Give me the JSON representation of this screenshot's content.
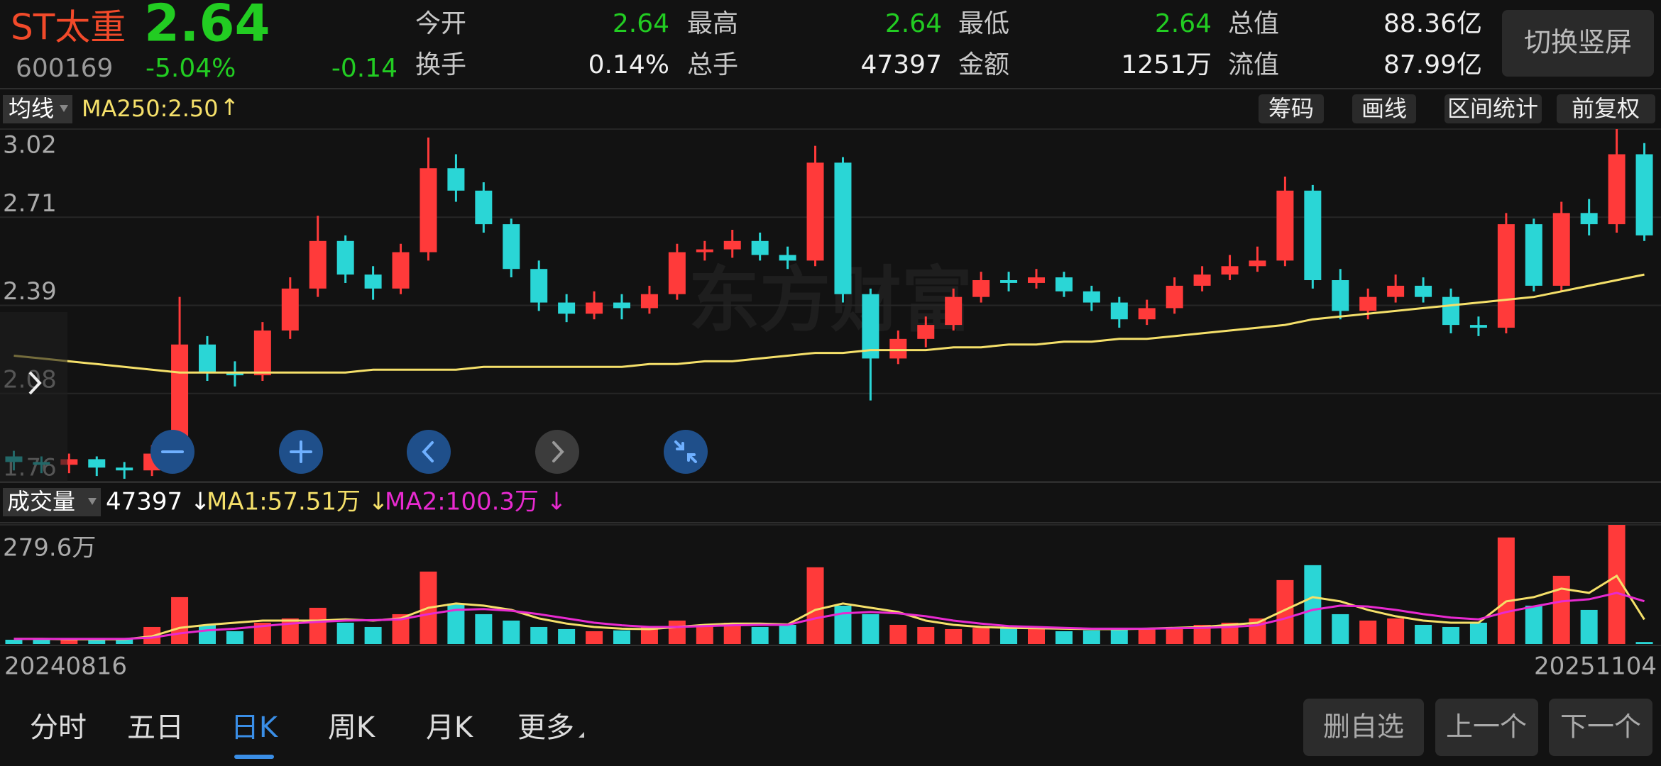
{
  "header": {
    "name": "ST太重",
    "price": "2.64",
    "code": "600169",
    "change_pct": "-5.04%",
    "change": "-0.14",
    "stats": [
      {
        "label": "今开",
        "value": "2.64"
      },
      {
        "label": "最高",
        "value": "2.64"
      },
      {
        "label": "最低",
        "value": "2.64"
      },
      {
        "label": "总值",
        "value": "88.36亿"
      },
      {
        "label": "换手",
        "value": "0.14%"
      },
      {
        "label": "总手",
        "value": "47397"
      },
      {
        "label": "金额",
        "value": "1251万"
      },
      {
        "label": "流值",
        "value": "87.99亿"
      }
    ],
    "button": "切换竖屏"
  },
  "ma_bar": {
    "selector": "均线",
    "label": "MA250:2.50",
    "arrow": "↑",
    "tools": [
      "筹码",
      "画线",
      "区间统计",
      "前复权"
    ]
  },
  "watermark": "东方财富",
  "volume_bar": {
    "selector": "成交量",
    "volume": "47397 ↓",
    "ma1": "MA1:57.51万 ↓",
    "ma2": "MA2:100.3万 ↓"
  },
  "kline": {
    "ylim": [
      1.76,
      3.02
    ],
    "yticks": [
      3.02,
      {
        "value": 2.705,
        "label": "2.71"
      },
      2.39,
      {
        "value": 2.075,
        "label": "2.08"
      },
      1.76
    ],
    "open": [
      1.85,
      1.83,
      1.82,
      1.84,
      1.81,
      1.8,
      1.87,
      2.25,
      2.15,
      2.14,
      2.3,
      2.45,
      2.62,
      2.5,
      2.45,
      2.58,
      2.88,
      2.8,
      2.68,
      2.52,
      2.4,
      2.36,
      2.4,
      2.38,
      2.43,
      2.58,
      2.59,
      2.62,
      2.57,
      2.55,
      2.9,
      2.43,
      2.2,
      2.27,
      2.32,
      2.42,
      2.48,
      2.47,
      2.49,
      2.44,
      2.4,
      2.34,
      2.38,
      2.46,
      2.5,
      2.53,
      2.55,
      2.8,
      2.48,
      2.37,
      2.42,
      2.46,
      2.42,
      2.32,
      2.31,
      2.68,
      2.46,
      2.72,
      2.68,
      2.93
    ],
    "high": [
      1.87,
      1.85,
      1.86,
      1.85,
      1.83,
      1.89,
      2.42,
      2.28,
      2.19,
      2.33,
      2.49,
      2.71,
      2.64,
      2.53,
      2.61,
      2.99,
      2.93,
      2.83,
      2.7,
      2.55,
      2.43,
      2.44,
      2.43,
      2.46,
      2.61,
      2.62,
      2.66,
      2.65,
      2.6,
      2.96,
      2.92,
      2.45,
      2.3,
      2.35,
      2.45,
      2.51,
      2.51,
      2.52,
      2.51,
      2.46,
      2.42,
      2.41,
      2.49,
      2.53,
      2.57,
      2.6,
      2.85,
      2.82,
      2.52,
      2.45,
      2.5,
      2.49,
      2.45,
      2.35,
      2.72,
      2.7,
      2.76,
      2.77,
      3.02,
      2.97
    ],
    "low": [
      1.8,
      1.79,
      1.79,
      1.78,
      1.77,
      1.78,
      1.85,
      2.12,
      2.1,
      2.12,
      2.27,
      2.42,
      2.47,
      2.41,
      2.43,
      2.55,
      2.76,
      2.65,
      2.49,
      2.37,
      2.33,
      2.34,
      2.34,
      2.36,
      2.41,
      2.55,
      2.56,
      2.55,
      2.52,
      2.53,
      2.4,
      2.05,
      2.18,
      2.24,
      2.3,
      2.4,
      2.44,
      2.45,
      2.42,
      2.37,
      2.31,
      2.32,
      2.36,
      2.44,
      2.48,
      2.51,
      2.53,
      2.45,
      2.34,
      2.34,
      2.4,
      2.4,
      2.29,
      2.28,
      2.29,
      2.44,
      2.44,
      2.64,
      2.65,
      2.62
    ],
    "close": [
      1.83,
      1.82,
      1.84,
      1.81,
      1.8,
      1.86,
      2.25,
      2.15,
      2.14,
      2.3,
      2.45,
      2.62,
      2.5,
      2.45,
      2.58,
      2.88,
      2.8,
      2.68,
      2.52,
      2.4,
      2.36,
      2.4,
      2.38,
      2.43,
      2.58,
      2.59,
      2.62,
      2.57,
      2.55,
      2.9,
      2.43,
      2.2,
      2.27,
      2.32,
      2.42,
      2.48,
      2.47,
      2.49,
      2.44,
      2.4,
      2.34,
      2.38,
      2.46,
      2.5,
      2.53,
      2.55,
      2.8,
      2.48,
      2.37,
      2.42,
      2.46,
      2.42,
      2.32,
      2.31,
      2.68,
      2.46,
      2.72,
      2.68,
      2.93,
      2.64
    ],
    "ma250": [
      2.21,
      2.2,
      2.19,
      2.18,
      2.17,
      2.16,
      2.15,
      2.15,
      2.15,
      2.15,
      2.15,
      2.15,
      2.15,
      2.16,
      2.16,
      2.16,
      2.16,
      2.17,
      2.17,
      2.17,
      2.17,
      2.17,
      2.17,
      2.18,
      2.18,
      2.19,
      2.19,
      2.2,
      2.21,
      2.22,
      2.22,
      2.23,
      2.23,
      2.23,
      2.24,
      2.24,
      2.25,
      2.25,
      2.26,
      2.26,
      2.27,
      2.27,
      2.28,
      2.29,
      2.3,
      2.31,
      2.32,
      2.34,
      2.35,
      2.36,
      2.37,
      2.38,
      2.39,
      2.4,
      2.41,
      2.42,
      2.44,
      2.46,
      2.48,
      2.5
    ],
    "vol_ylim": [
      0,
      279.6
    ],
    "vol_yticks": [
      {
        "value": 279.6,
        "label": "279.6万"
      }
    ],
    "volume": [
      10,
      12,
      11,
      10,
      14,
      40,
      110,
      45,
      30,
      50,
      60,
      85,
      50,
      40,
      70,
      170,
      95,
      70,
      55,
      40,
      35,
      30,
      32,
      40,
      55,
      45,
      50,
      40,
      45,
      180,
      90,
      70,
      45,
      40,
      35,
      38,
      40,
      35,
      30,
      32,
      38,
      36,
      40,
      45,
      50,
      60,
      150,
      185,
      70,
      55,
      60,
      45,
      40,
      50,
      250,
      90,
      160,
      80,
      279.6,
      4.74
    ],
    "vol_ma1": [
      12,
      12,
      11,
      11,
      11,
      18,
      38,
      45,
      50,
      55,
      55,
      55,
      58,
      55,
      60,
      85,
      95,
      90,
      80,
      60,
      48,
      40,
      36,
      35,
      40,
      45,
      48,
      48,
      46,
      80,
      95,
      85,
      75,
      55,
      45,
      40,
      38,
      37,
      36,
      35,
      35,
      36,
      38,
      40,
      45,
      50,
      80,
      110,
      100,
      80,
      65,
      55,
      50,
      50,
      100,
      110,
      130,
      120,
      160,
      57.51
    ],
    "vol_ma2": [
      12,
      12,
      12,
      12,
      12,
      15,
      25,
      32,
      36,
      42,
      48,
      52,
      55,
      56,
      58,
      70,
      80,
      82,
      78,
      70,
      60,
      50,
      44,
      40,
      40,
      42,
      44,
      45,
      45,
      60,
      72,
      75,
      72,
      65,
      55,
      48,
      42,
      40,
      38,
      36,
      36,
      36,
      37,
      38,
      40,
      44,
      60,
      80,
      90,
      88,
      80,
      70,
      62,
      58,
      75,
      88,
      100,
      105,
      120,
      100.3
    ],
    "start_date": "20240816",
    "end_date": "20251104"
  },
  "tabs": {
    "items": [
      "分时",
      "五日",
      "日K",
      "周K",
      "月K",
      "更多"
    ],
    "active": 2
  },
  "buttons": [
    "删自选",
    "上一个",
    "下一个"
  ]
}
